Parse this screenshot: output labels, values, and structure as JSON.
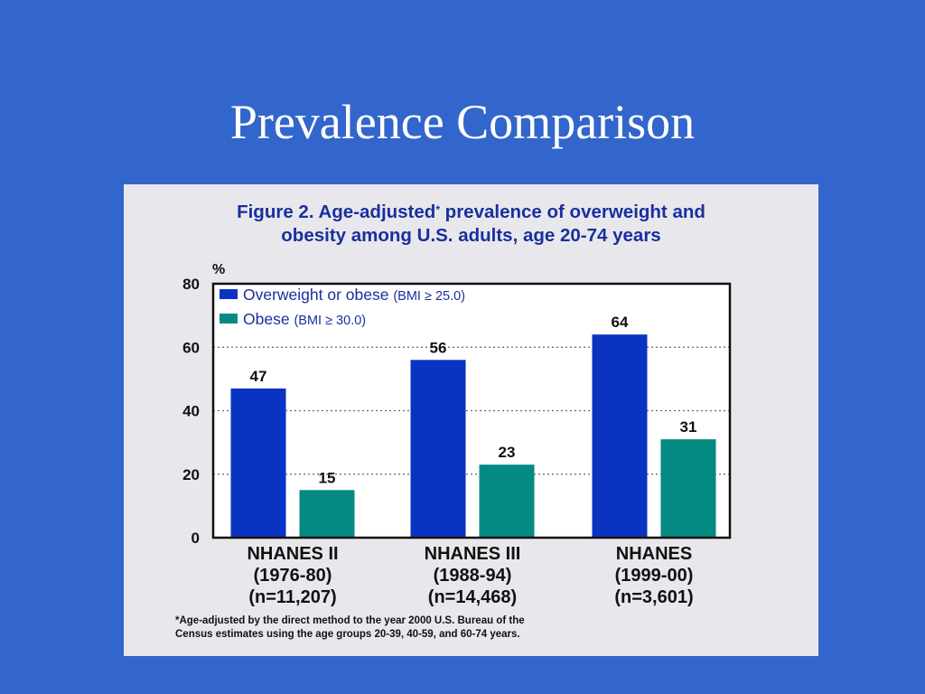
{
  "slide": {
    "title": "Prevalence Comparison"
  },
  "figure": {
    "title_line1_pre": "Figure 2. Age-adjusted",
    "title_mark": "*",
    "title_line1_post": " prevalence of overweight and",
    "title_line2": "obesity among U.S. adults, age 20-74 years",
    "footnote_line1": "*Age-adjusted by the direct method to the year 2000 U.S. Bureau of the",
    "footnote_line2": "Census estimates using the age groups 20-39, 40-59, and 60-74 years."
  },
  "colors": {
    "background": "#3366cc",
    "overweight": "#0a33c2",
    "obese": "#048a82",
    "title": "#1a2f9e"
  },
  "chart_data": {
    "type": "bar",
    "ylabel": "%",
    "ylim": [
      0,
      80
    ],
    "yticks": [
      "0",
      "20",
      "40",
      "60",
      "80"
    ],
    "grid": "dotted horizontal",
    "legend_position": "top-left",
    "categories": [
      [
        "NHANES II",
        "(1976-80)",
        "(n=11,207)"
      ],
      [
        "NHANES III",
        "(1988-94)",
        "(n=14,468)"
      ],
      [
        "NHANES",
        "(1999-00)",
        "(n=3,601)"
      ]
    ],
    "series": [
      {
        "name": "Overweight or obese",
        "qualifier": "(BMI ≥ 25.0)",
        "color": "#0a33c2",
        "values": [
          47,
          56,
          64
        ],
        "labels": [
          "47",
          "56",
          "64"
        ]
      },
      {
        "name": "Obese",
        "qualifier": "(BMI ≥ 30.0)",
        "color": "#048a82",
        "values": [
          15,
          23,
          31
        ],
        "labels": [
          "15",
          "23",
          "31"
        ]
      }
    ]
  }
}
